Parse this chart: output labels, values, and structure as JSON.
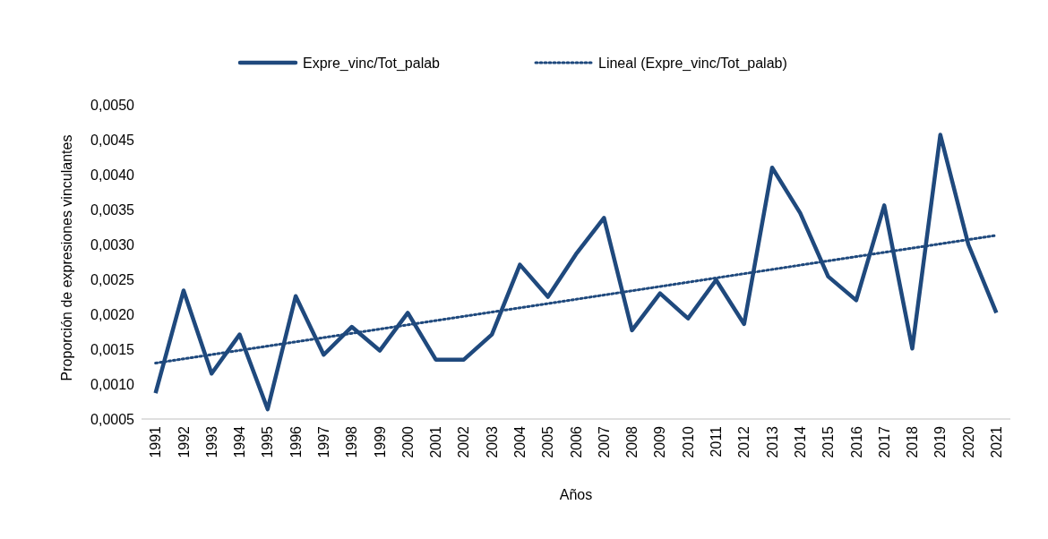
{
  "chart_data": {
    "type": "line",
    "xlabel": "Años",
    "ylabel": "Proporción de expresiones vinculantes",
    "legend": "top",
    "grid": false,
    "marker": "none",
    "x": [
      1991,
      1992,
      1993,
      1994,
      1995,
      1996,
      1997,
      1998,
      1999,
      2000,
      2001,
      2002,
      2003,
      2004,
      2005,
      2006,
      2007,
      2008,
      2009,
      2010,
      2011,
      2012,
      2013,
      2014,
      2015,
      2016,
      2017,
      2018,
      2019,
      2020,
      2021
    ],
    "xlim": [
      1990.5,
      2021.5
    ],
    "xticks": [
      1991,
      1992,
      1993,
      1994,
      1995,
      1996,
      1997,
      1998,
      1999,
      2000,
      2001,
      2002,
      2003,
      2004,
      2005,
      2006,
      2007,
      2008,
      2009,
      2010,
      2011,
      2012,
      2013,
      2014,
      2015,
      2016,
      2017,
      2018,
      2019,
      2020,
      2021
    ],
    "ylim": [
      0.0005,
      0.005
    ],
    "yticks": [
      {
        "value": 0.0005,
        "label": "0,0005"
      },
      {
        "value": 0.001,
        "label": "0,0010"
      },
      {
        "value": 0.0015,
        "label": "0,0015"
      },
      {
        "value": 0.002,
        "label": "0,0020"
      },
      {
        "value": 0.0025,
        "label": "0,0025"
      },
      {
        "value": 0.003,
        "label": "0,0030"
      },
      {
        "value": 0.0035,
        "label": "0,0035"
      },
      {
        "value": 0.004,
        "label": "0,0040"
      },
      {
        "value": 0.0045,
        "label": "0,0045"
      },
      {
        "value": 0.005,
        "label": "0,0050"
      }
    ],
    "series": [
      {
        "name": "Expre_vinc/Tot_palab",
        "color": "#1f497d",
        "line_style": "solid",
        "values": [
          0.00087,
          0.00234,
          0.00115,
          0.00171,
          0.00064,
          0.00226,
          0.00142,
          0.00182,
          0.00148,
          0.00202,
          0.00135,
          0.00135,
          0.00171,
          0.00271,
          0.00225,
          0.00286,
          0.00338,
          0.00177,
          0.0023,
          0.00194,
          0.00249,
          0.00186,
          0.0041,
          0.00345,
          0.00254,
          0.0022,
          0.00356,
          0.00151,
          0.00457,
          0.003,
          0.00202
        ]
      },
      {
        "name": "Lineal (Expre_vinc/Tot_palab)",
        "color": "#1f497d",
        "line_style": "dotted",
        "x": [
          1991,
          2021
        ],
        "values": [
          0.0013,
          0.00313
        ]
      }
    ]
  }
}
